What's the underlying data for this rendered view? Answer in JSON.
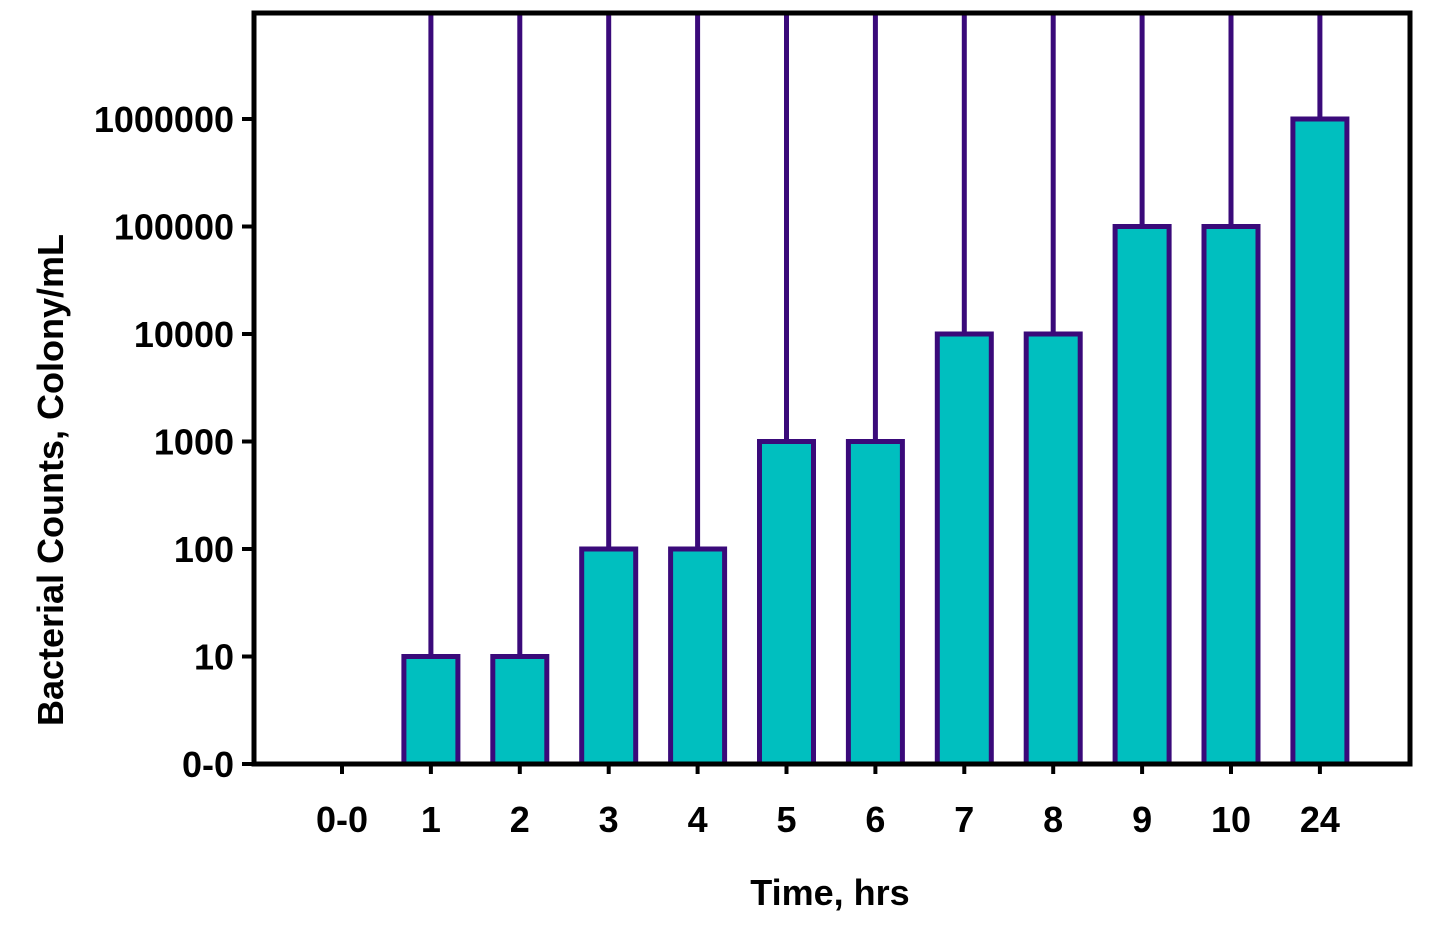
{
  "chart_data": {
    "type": "bar",
    "title": "",
    "xlabel": "Time, hrs",
    "ylabel": "Bacterial Counts, Colony/mL",
    "y_scale": "log",
    "categories": [
      "0-0",
      "1",
      "2",
      "3",
      "4",
      "5",
      "6",
      "7",
      "8",
      "9",
      "10",
      "24"
    ],
    "values": [
      0,
      10,
      10,
      100,
      100,
      1000,
      1000,
      10000,
      10000,
      100000,
      100000,
      1000000
    ],
    "error_bars": "upper bar extends beyond top of plot for each non-zero bar",
    "y_tick_labels": [
      "0-0",
      "10",
      "100",
      "1000",
      "10000",
      "100000",
      "1000000"
    ],
    "grid": false,
    "legend": "none",
    "colors": {
      "bar_fill": "#00BFBF",
      "bar_outline": "#3A0A7A",
      "axis": "#000000"
    }
  }
}
